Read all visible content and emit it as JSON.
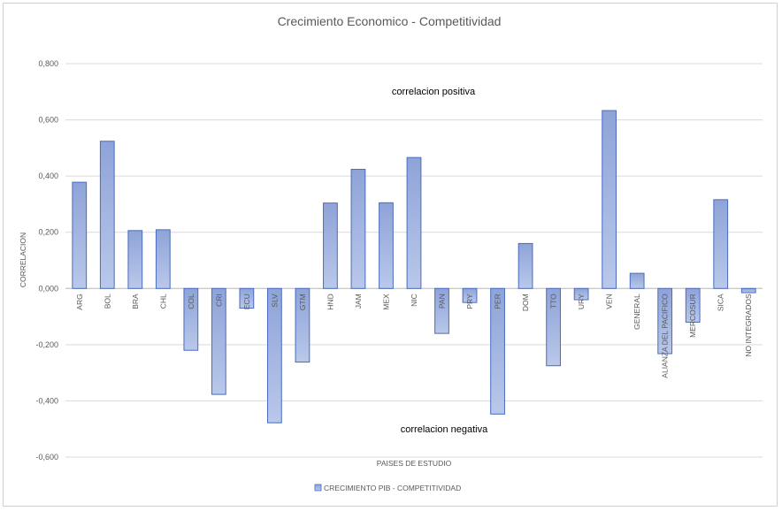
{
  "chart_data": {
    "type": "bar",
    "title": "Crecimiento  Economico  - Competitividad",
    "xlabel": "PAISES DE ESTUDIO",
    "ylabel": "CORRELACION",
    "ylim": [
      -0.6,
      0.8
    ],
    "yticks": [
      "-0,600",
      "-0,400",
      "-0,200",
      "0,000",
      "0,200",
      "0,400",
      "0,600",
      "0,800"
    ],
    "grid": true,
    "legend_position": "bottom",
    "categories": [
      "ARG",
      "BOL",
      "BRA",
      "CHL",
      "COL",
      "CRI",
      "ECU",
      "SLV",
      "GTM",
      "HND",
      "JAM",
      "MEX",
      "NIC",
      "PAN",
      "PRY",
      "PER",
      "DOM",
      "TTO",
      "URY",
      "VEN",
      "GENERAL",
      "ALIANZA DEL PACIFICO",
      "MERCOSUR",
      "SICA",
      "NO INTEGRADOS"
    ],
    "series": [
      {
        "name": "CRECIMIENTO PIB - COMPETITIVIDAD",
        "values": [
          0.378,
          0.524,
          0.206,
          0.209,
          -0.22,
          -0.377,
          -0.07,
          -0.478,
          -0.262,
          0.304,
          0.424,
          0.305,
          0.466,
          -0.16,
          -0.05,
          -0.447,
          0.16,
          -0.275,
          -0.04,
          0.633,
          0.054,
          -0.232,
          -0.12,
          0.316,
          -0.015
        ]
      }
    ],
    "annotations": [
      "correlacion positiva",
      "correlacion negativa"
    ],
    "colors": {
      "bar_top": "#8ea3d8",
      "bar_bottom": "#b9c8ea",
      "bar_stroke": "#4a6cbf",
      "grid": "#d9d9d9",
      "axis": "#bfbfbf"
    }
  }
}
